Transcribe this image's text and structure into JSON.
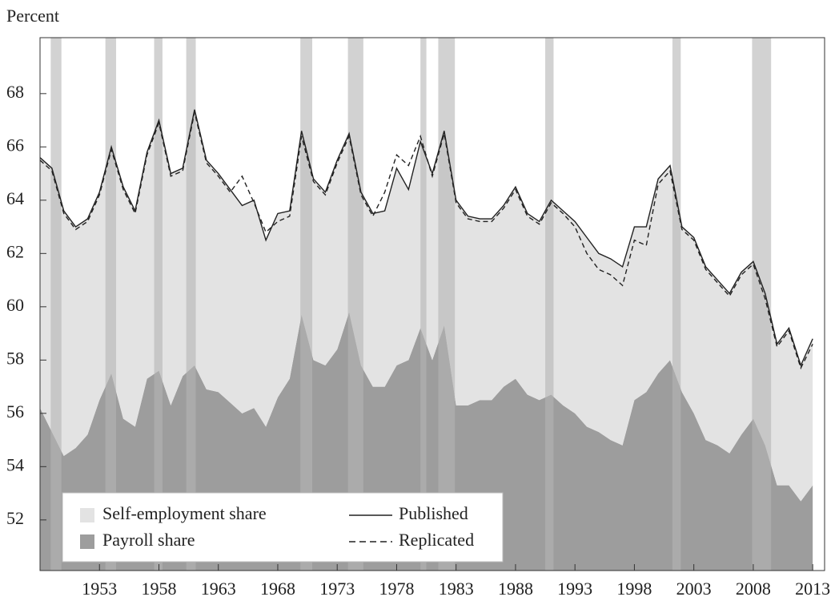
{
  "chart_data": {
    "type": "area",
    "y_label": "Percent",
    "x": [
      1948,
      1949,
      1950,
      1951,
      1952,
      1953,
      1954,
      1955,
      1956,
      1957,
      1958,
      1959,
      1960,
      1961,
      1962,
      1963,
      1964,
      1965,
      1966,
      1967,
      1968,
      1969,
      1970,
      1971,
      1972,
      1973,
      1974,
      1975,
      1976,
      1977,
      1978,
      1979,
      1980,
      1981,
      1982,
      1983,
      1984,
      1985,
      1986,
      1987,
      1988,
      1989,
      1990,
      1991,
      1992,
      1993,
      1994,
      1995,
      1996,
      1997,
      1998,
      1999,
      2000,
      2001,
      2002,
      2003,
      2004,
      2005,
      2006,
      2007,
      2008,
      2009,
      2010,
      2011,
      2012,
      2013
    ],
    "xlim": [
      1948,
      2014
    ],
    "xticks": [
      1953,
      1958,
      1963,
      1968,
      1973,
      1978,
      1983,
      1988,
      1993,
      1998,
      2003,
      2008,
      2013
    ],
    "ylim": [
      50.1,
      70.1
    ],
    "yticks": [
      52,
      54,
      56,
      58,
      60,
      62,
      64,
      66,
      68
    ],
    "legend": "lower left",
    "recession_color": "#b4b4b4",
    "recessions": [
      {
        "start": 1948.9,
        "end": 1949.8
      },
      {
        "start": 1953.5,
        "end": 1954.4
      },
      {
        "start": 1957.6,
        "end": 1958.3
      },
      {
        "start": 1960.3,
        "end": 1961.1
      },
      {
        "start": 1969.9,
        "end": 1970.9
      },
      {
        "start": 1973.9,
        "end": 1975.2
      },
      {
        "start": 1980.0,
        "end": 1980.5
      },
      {
        "start": 1981.5,
        "end": 1982.9
      },
      {
        "start": 1990.5,
        "end": 1991.2
      },
      {
        "start": 2001.2,
        "end": 2001.9
      },
      {
        "start": 2007.9,
        "end": 2009.5
      }
    ],
    "series": [
      {
        "name": "Payroll share",
        "style": "area",
        "color": "#9d9d9d",
        "values": [
          56.2,
          55.3,
          54.4,
          54.7,
          55.2,
          56.5,
          57.5,
          55.8,
          55.5,
          57.3,
          57.6,
          56.3,
          57.4,
          57.8,
          56.9,
          56.8,
          56.4,
          56.0,
          56.2,
          55.5,
          56.6,
          57.3,
          59.7,
          58.0,
          57.8,
          58.4,
          59.8,
          57.8,
          57.0,
          57.0,
          57.8,
          58.0,
          59.2,
          58.0,
          59.3,
          56.3,
          56.3,
          56.5,
          56.5,
          57.0,
          57.3,
          56.7,
          56.5,
          56.7,
          56.3,
          56.0,
          55.5,
          55.3,
          55.0,
          54.8,
          56.5,
          56.8,
          57.5,
          58.0,
          56.8,
          56.0,
          55.0,
          54.8,
          54.5,
          55.2,
          55.8,
          54.8,
          53.3,
          53.3,
          52.7,
          53.3
        ]
      },
      {
        "name": "Self-employment share",
        "style": "area",
        "stack": true,
        "color": "#e3e3e3",
        "values": [
          9.4,
          9.9,
          9.2,
          8.3,
          8.1,
          7.8,
          8.5,
          8.7,
          8.1,
          8.5,
          9.4,
          8.7,
          7.8,
          9.6,
          8.6,
          8.2,
          8.0,
          7.8,
          7.8,
          7.0,
          6.9,
          6.3,
          6.9,
          6.8,
          6.5,
          7.1,
          6.7,
          6.5,
          6.5,
          6.6,
          7.4,
          6.4,
          7.0,
          7.0,
          7.3,
          7.7,
          7.1,
          6.8,
          6.8,
          6.8,
          7.2,
          6.8,
          6.7,
          7.3,
          7.3,
          7.2,
          7.1,
          6.7,
          6.8,
          6.7,
          6.5,
          6.2,
          7.3,
          7.3,
          6.2,
          6.6,
          6.5,
          6.2,
          6.0,
          6.1,
          5.9,
          5.7,
          5.3,
          5.9,
          5.1,
          5.5
        ]
      },
      {
        "name": "Published",
        "style": "solid",
        "color": "#222222",
        "values": [
          65.6,
          65.2,
          63.6,
          63.0,
          63.3,
          64.3,
          66.0,
          64.5,
          63.6,
          65.8,
          67.0,
          65.0,
          65.2,
          67.4,
          65.5,
          65.0,
          64.4,
          63.8,
          64.0,
          62.5,
          63.5,
          63.6,
          66.6,
          64.8,
          64.3,
          65.5,
          66.5,
          64.3,
          63.5,
          63.6,
          65.2,
          64.4,
          66.2,
          65.0,
          66.6,
          64.0,
          63.4,
          63.3,
          63.3,
          63.8,
          64.5,
          63.5,
          63.2,
          64.0,
          63.6,
          63.2,
          62.6,
          62.0,
          61.8,
          61.5,
          63.0,
          63.0,
          64.8,
          65.3,
          63.0,
          62.6,
          61.5,
          61.0,
          60.5,
          61.3,
          61.7,
          60.5,
          58.6,
          59.2,
          57.8,
          58.8
        ]
      },
      {
        "name": "Replicated",
        "style": "dashed",
        "color": "#222222",
        "values": [
          65.5,
          65.1,
          63.5,
          62.9,
          63.2,
          64.2,
          65.9,
          64.4,
          63.5,
          65.7,
          66.9,
          64.9,
          65.1,
          67.3,
          65.4,
          64.9,
          64.3,
          64.9,
          63.9,
          62.8,
          63.2,
          63.4,
          66.4,
          64.7,
          64.2,
          65.4,
          66.4,
          64.2,
          63.4,
          64.3,
          65.7,
          65.3,
          66.4,
          64.9,
          66.5,
          63.9,
          63.3,
          63.2,
          63.2,
          63.7,
          64.4,
          63.4,
          63.1,
          63.9,
          63.5,
          63.0,
          62.0,
          61.4,
          61.2,
          60.8,
          62.5,
          62.3,
          64.6,
          65.1,
          62.9,
          62.5,
          61.4,
          60.9,
          60.4,
          61.2,
          61.6,
          60.3,
          58.5,
          59.1,
          57.7,
          58.6
        ]
      }
    ]
  }
}
